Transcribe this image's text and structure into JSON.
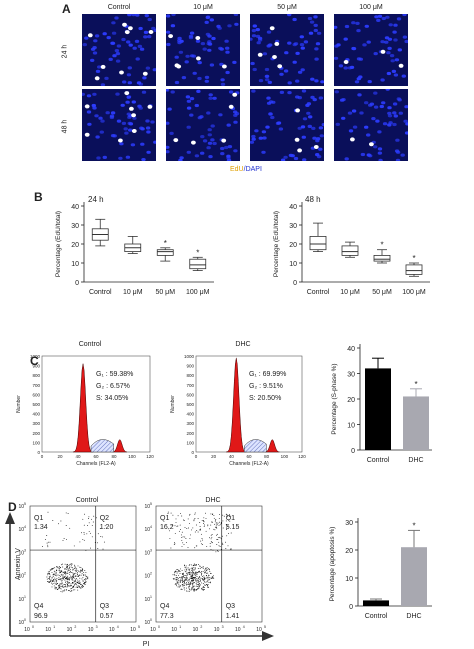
{
  "panelA": {
    "letter": "A",
    "columns": [
      "Control",
      "10 μM",
      "50 μM",
      "100 μM"
    ],
    "rows": [
      "24 h",
      "48 h"
    ],
    "caption_edu": "EdU",
    "caption_sep": "/",
    "caption_dapi": "DAPI",
    "colors": {
      "dapi": "#2c3cff",
      "edu": "#ffffff",
      "background": "#0a0f5a",
      "edu_label": "#e0a000",
      "dapi_label": "#2030d0"
    }
  },
  "panelB": {
    "letter": "B",
    "ylabel": "Percentage (EdU/total)",
    "categories": [
      "Control",
      "10 μM",
      "50 μM",
      "100 μM"
    ],
    "yticks": [
      "0",
      "10",
      "20",
      "30",
      "40"
    ],
    "plots": [
      {
        "title": "24 h",
        "stars": [
          "",
          "",
          "*",
          "*"
        ]
      },
      {
        "title": "48 h",
        "stars": [
          "",
          "",
          "*",
          "*"
        ]
      }
    ]
  },
  "panelC": {
    "letter": "C",
    "histograms": [
      {
        "title": "Control",
        "g1": "G₁ : 59.38%",
        "g2": "G₂ : 6.57%",
        "s": "S: 34.05%"
      },
      {
        "title": "DHC",
        "g1": "G₁ : 69.99%",
        "g2": "G₂ : 9.51%",
        "s": "S: 20.50%"
      }
    ],
    "hist_ylabel": "Number",
    "hist_xlabel": "Channels (FL2-A)",
    "hist_yticks": [
      "0",
      "100",
      "200",
      "300",
      "400",
      "500",
      "600",
      "700",
      "800",
      "900",
      "1000"
    ],
    "hist_xticks": [
      "0",
      "20",
      "40",
      "60",
      "80",
      "100",
      "120"
    ],
    "bar_ylabel": "Percentage (S-phase %)",
    "bar_yticks": [
      "0",
      "10",
      "20",
      "30",
      "40"
    ],
    "bar_star": "*"
  },
  "panelD": {
    "letter": "D",
    "plots": [
      {
        "title": "Control",
        "q1": "Q1",
        "q1v": "1.34",
        "q2": "Q2",
        "q2v": "1.20",
        "q3": "Q3",
        "q3v": "0.57",
        "q4": "Q4",
        "q4v": "96.9"
      },
      {
        "title": "DHC",
        "q1": "Q1",
        "q1v": "16.2",
        "q2": "Q1",
        "q2v": "5.15",
        "q3": "Q3",
        "q3v": "1.41",
        "q4": "Q4",
        "q4v": "77.3"
      }
    ],
    "yaxis_label": "Annexin V",
    "xaxis_label": "PI",
    "decade_ticks": [
      "10",
      "10",
      "10",
      "10",
      "10",
      "10"
    ],
    "decade_exps": [
      "0",
      "1",
      "2",
      "3",
      "4",
      "5"
    ],
    "bar_ylabel": "Percentage (apoptosis %)",
    "bar_yticks": [
      "0",
      "10",
      "20",
      "30"
    ],
    "bar_star": "*"
  },
  "chart_data": [
    {
      "type": "box",
      "title": "24 h",
      "ylabel": "Percentage (EdU/total)",
      "categories": [
        "Control",
        "10 μM",
        "50 μM",
        "100 μM"
      ],
      "ylim": [
        0,
        40
      ],
      "boxes": [
        {
          "min": 19,
          "q1": 22,
          "median": 25,
          "q3": 28,
          "max": 33
        },
        {
          "min": 15,
          "q1": 16,
          "median": 18,
          "q3": 20,
          "max": 24
        },
        {
          "min": 11,
          "q1": 14,
          "median": 16,
          "q3": 17,
          "max": 18
        },
        {
          "min": 6,
          "q1": 7,
          "median": 9,
          "q3": 12,
          "max": 13
        }
      ]
    },
    {
      "type": "box",
      "title": "48 h",
      "ylabel": "Percentage (EdU/total)",
      "categories": [
        "Control",
        "10 μM",
        "50 μM",
        "100 μM"
      ],
      "ylim": [
        0,
        40
      ],
      "boxes": [
        {
          "min": 16,
          "q1": 17,
          "median": 20,
          "q3": 24,
          "max": 31
        },
        {
          "min": 13,
          "q1": 14,
          "median": 16,
          "q3": 19,
          "max": 21
        },
        {
          "min": 10,
          "q1": 11,
          "median": 12,
          "q3": 14,
          "max": 17
        },
        {
          "min": 3,
          "q1": 4,
          "median": 6,
          "q3": 9,
          "max": 10
        }
      ]
    },
    {
      "type": "bar",
      "ylabel": "Percentage (S-phase %)",
      "categories": [
        "Control",
        "DHC"
      ],
      "values": [
        32,
        21
      ],
      "errors": [
        4,
        3
      ],
      "ylim": [
        0,
        40
      ],
      "colors": [
        "#000000",
        "#a8a8b0"
      ]
    },
    {
      "type": "bar",
      "ylabel": "Percentage (apoptosis %)",
      "categories": [
        "Control",
        "DHC"
      ],
      "values": [
        2,
        21
      ],
      "errors": [
        0.5,
        6
      ],
      "ylim": [
        0,
        30
      ],
      "colors": [
        "#000000",
        "#a8a8b0"
      ]
    }
  ]
}
